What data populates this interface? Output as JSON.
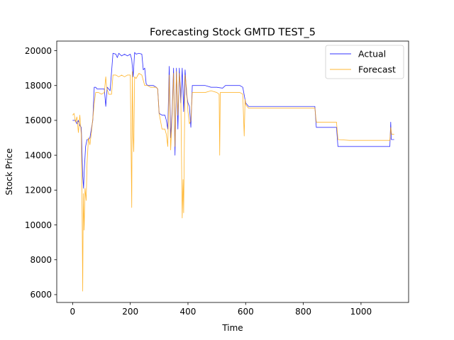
{
  "chart_data": {
    "type": "line",
    "title": "Forecasting Stock GMTD TEST_5",
    "xlabel": "Time",
    "ylabel": "Stock Price",
    "xlim": [
      -55,
      1165
    ],
    "ylim": [
      5550,
      20550
    ],
    "xticks": [
      0,
      200,
      400,
      600,
      800,
      1000
    ],
    "yticks": [
      6000,
      8000,
      10000,
      12000,
      14000,
      16000,
      18000,
      20000
    ],
    "grid": false,
    "legend_position": "top-right",
    "series": [
      {
        "name": "Actual",
        "color": "#0000ff",
        "points": [
          [
            0,
            16000
          ],
          [
            10,
            16000
          ],
          [
            15,
            15800
          ],
          [
            20,
            16000
          ],
          [
            25,
            15700
          ],
          [
            30,
            15600
          ],
          [
            35,
            12800
          ],
          [
            38,
            12100
          ],
          [
            40,
            13000
          ],
          [
            45,
            14500
          ],
          [
            50,
            14900
          ],
          [
            55,
            14900
          ],
          [
            60,
            15000
          ],
          [
            65,
            15500
          ],
          [
            70,
            16000
          ],
          [
            75,
            17900
          ],
          [
            80,
            17900
          ],
          [
            85,
            17800
          ],
          [
            90,
            17800
          ],
          [
            100,
            17800
          ],
          [
            110,
            17800
          ],
          [
            115,
            16800
          ],
          [
            120,
            17900
          ],
          [
            130,
            17700
          ],
          [
            140,
            19850
          ],
          [
            150,
            19800
          ],
          [
            155,
            19600
          ],
          [
            160,
            19850
          ],
          [
            170,
            19700
          ],
          [
            180,
            19800
          ],
          [
            190,
            19700
          ],
          [
            200,
            19800
          ],
          [
            205,
            19500
          ],
          [
            210,
            18500
          ],
          [
            215,
            19900
          ],
          [
            220,
            19800
          ],
          [
            230,
            19850
          ],
          [
            240,
            19800
          ],
          [
            245,
            18900
          ],
          [
            250,
            19000
          ],
          [
            255,
            18100
          ],
          [
            260,
            18000
          ],
          [
            270,
            18000
          ],
          [
            280,
            18000
          ],
          [
            290,
            17900
          ],
          [
            295,
            17800
          ],
          [
            300,
            16400
          ],
          [
            310,
            16300
          ],
          [
            320,
            16300
          ],
          [
            325,
            16000
          ],
          [
            330,
            15500
          ],
          [
            335,
            19100
          ],
          [
            340,
            15000
          ],
          [
            345,
            16500
          ],
          [
            350,
            19000
          ],
          [
            355,
            14000
          ],
          [
            360,
            19000
          ],
          [
            365,
            15500
          ],
          [
            370,
            19000
          ],
          [
            375,
            17000
          ],
          [
            380,
            19000
          ],
          [
            385,
            16500
          ],
          [
            390,
            18900
          ],
          [
            395,
            17500
          ],
          [
            400,
            17000
          ],
          [
            405,
            16800
          ],
          [
            410,
            15600
          ],
          [
            415,
            18000
          ],
          [
            420,
            18000
          ],
          [
            440,
            18000
          ],
          [
            460,
            18000
          ],
          [
            480,
            17900
          ],
          [
            500,
            17900
          ],
          [
            520,
            17850
          ],
          [
            530,
            18000
          ],
          [
            560,
            18000
          ],
          [
            580,
            18000
          ],
          [
            590,
            17900
          ],
          [
            600,
            17000
          ],
          [
            605,
            16900
          ],
          [
            610,
            16800
          ],
          [
            640,
            16800
          ],
          [
            700,
            16800
          ],
          [
            760,
            16800
          ],
          [
            800,
            16800
          ],
          [
            840,
            16800
          ],
          [
            845,
            15600
          ],
          [
            870,
            15600
          ],
          [
            900,
            15600
          ],
          [
            915,
            15600
          ],
          [
            920,
            14500
          ],
          [
            960,
            14500
          ],
          [
            1000,
            14500
          ],
          [
            1040,
            14500
          ],
          [
            1080,
            14500
          ],
          [
            1100,
            14500
          ],
          [
            1103,
            15900
          ],
          [
            1105,
            14900
          ],
          [
            1115,
            14900
          ]
        ]
      },
      {
        "name": "Forecast",
        "color": "#ffa500",
        "points": [
          [
            0,
            16300
          ],
          [
            5,
            16400
          ],
          [
            10,
            15900
          ],
          [
            15,
            16200
          ],
          [
            20,
            15300
          ],
          [
            25,
            16300
          ],
          [
            30,
            15200
          ],
          [
            33,
            10500
          ],
          [
            35,
            6200
          ],
          [
            37,
            11800
          ],
          [
            40,
            9700
          ],
          [
            43,
            12100
          ],
          [
            47,
            11400
          ],
          [
            50,
            13500
          ],
          [
            55,
            15000
          ],
          [
            60,
            14600
          ],
          [
            65,
            15300
          ],
          [
            70,
            16100
          ],
          [
            75,
            17000
          ],
          [
            80,
            17600
          ],
          [
            90,
            17600
          ],
          [
            100,
            17500
          ],
          [
            110,
            17600
          ],
          [
            115,
            18500
          ],
          [
            118,
            17900
          ],
          [
            125,
            17500
          ],
          [
            135,
            17500
          ],
          [
            140,
            18600
          ],
          [
            150,
            18600
          ],
          [
            160,
            18500
          ],
          [
            170,
            18600
          ],
          [
            180,
            18500
          ],
          [
            190,
            18600
          ],
          [
            200,
            18600
          ],
          [
            205,
            11000
          ],
          [
            207,
            18800
          ],
          [
            210,
            15000
          ],
          [
            212,
            14200
          ],
          [
            215,
            18500
          ],
          [
            220,
            18400
          ],
          [
            230,
            18700
          ],
          [
            240,
            18600
          ],
          [
            245,
            18300
          ],
          [
            250,
            18000
          ],
          [
            260,
            18000
          ],
          [
            270,
            17900
          ],
          [
            280,
            17900
          ],
          [
            290,
            17900
          ],
          [
            295,
            17800
          ],
          [
            300,
            16400
          ],
          [
            310,
            15500
          ],
          [
            320,
            15500
          ],
          [
            325,
            15200
          ],
          [
            330,
            14500
          ],
          [
            335,
            18600
          ],
          [
            340,
            14300
          ],
          [
            345,
            16200
          ],
          [
            350,
            18700
          ],
          [
            355,
            14500
          ],
          [
            360,
            18800
          ],
          [
            365,
            16300
          ],
          [
            370,
            18700
          ],
          [
            375,
            17700
          ],
          [
            380,
            10400
          ],
          [
            383,
            12600
          ],
          [
            385,
            10700
          ],
          [
            388,
            15500
          ],
          [
            390,
            18600
          ],
          [
            395,
            17800
          ],
          [
            400,
            16500
          ],
          [
            405,
            15800
          ],
          [
            410,
            16000
          ],
          [
            415,
            17600
          ],
          [
            420,
            17600
          ],
          [
            440,
            17600
          ],
          [
            460,
            17600
          ],
          [
            480,
            17700
          ],
          [
            500,
            17600
          ],
          [
            508,
            17500
          ],
          [
            510,
            14000
          ],
          [
            512,
            17600
          ],
          [
            530,
            17600
          ],
          [
            560,
            17600
          ],
          [
            580,
            17600
          ],
          [
            590,
            17500
          ],
          [
            595,
            15100
          ],
          [
            598,
            17200
          ],
          [
            600,
            16900
          ],
          [
            610,
            16700
          ],
          [
            640,
            16700
          ],
          [
            700,
            16700
          ],
          [
            760,
            16700
          ],
          [
            800,
            16700
          ],
          [
            840,
            16700
          ],
          [
            845,
            15900
          ],
          [
            870,
            15900
          ],
          [
            900,
            15900
          ],
          [
            915,
            15900
          ],
          [
            920,
            14900
          ],
          [
            960,
            14850
          ],
          [
            1000,
            14850
          ],
          [
            1040,
            14850
          ],
          [
            1080,
            14850
          ],
          [
            1100,
            14850
          ],
          [
            1103,
            15600
          ],
          [
            1106,
            15200
          ],
          [
            1115,
            15200
          ]
        ]
      }
    ]
  }
}
